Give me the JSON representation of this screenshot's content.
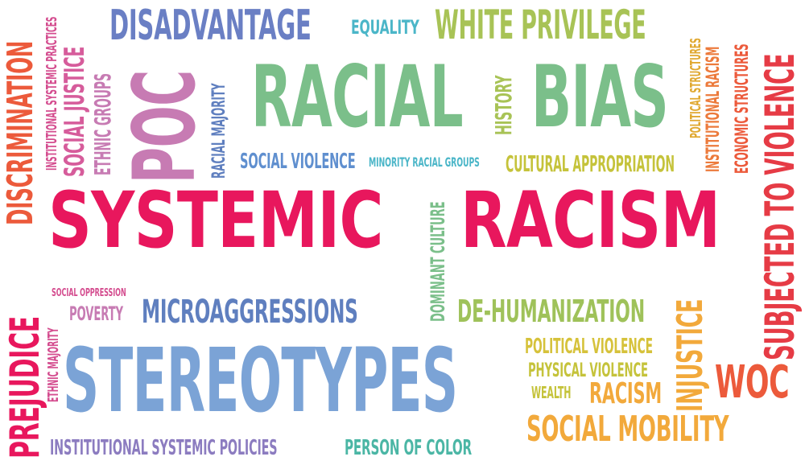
{
  "words": [
    {
      "text": "SYSTEMIC",
      "color": "#e8175d"
    },
    {
      "text": "RACISM",
      "color": "#e8175d"
    },
    {
      "text": "RACIAL",
      "color": "#7bbf8a"
    },
    {
      "text": "BIAS",
      "color": "#7bbf8a"
    },
    {
      "text": "STEREOTYPES",
      "color": "#7ba3d6"
    },
    {
      "text": "POC",
      "color": "#c77bb3"
    },
    {
      "text": "DISADVANTAGE",
      "color": "#6a7fc4"
    },
    {
      "text": "WHITE PRIVILEGE",
      "color": "#a8c356"
    },
    {
      "text": "EQUALITY",
      "color": "#4bb6c8"
    },
    {
      "text": "MICROAGGRESSIONS",
      "color": "#5f7fbf"
    },
    {
      "text": "DE-HUMANIZATION",
      "color": "#9fc25a"
    },
    {
      "text": "SOCIAL MOBILITY",
      "color": "#f2a93b"
    },
    {
      "text": "INSTITUTIONAL SYSTEMIC POLICIES",
      "color": "#8c7cc0"
    },
    {
      "text": "PERSON OF COLOR",
      "color": "#4bb6a5"
    },
    {
      "text": "WOC",
      "color": "#ec5a3b"
    },
    {
      "text": "INJUSTICE",
      "color": "#f2a93b"
    },
    {
      "text": "SUBJECTED TO VIOLENCE",
      "color": "#e63b45"
    },
    {
      "text": "PREJUDICE",
      "color": "#e8175d"
    },
    {
      "text": "DISCRIMINATION",
      "color": "#ec5a3b"
    },
    {
      "text": "SOCIAL JUSTICE",
      "color": "#d65c9b"
    },
    {
      "text": "INSTITUTIONAL SYSTEMIC PRACTICES",
      "color": "#d44d8f"
    },
    {
      "text": "ETHNIC GROUPS",
      "color": "#c77bb3"
    },
    {
      "text": "RACIAL MAJORITY",
      "color": "#5f7fbf"
    },
    {
      "text": "HISTORY",
      "color": "#a8c356"
    },
    {
      "text": "SOCIAL VIOLENCE",
      "color": "#5f8fcf"
    },
    {
      "text": "MINORITY RACIAL GROUPS",
      "color": "#4bb6c8"
    },
    {
      "text": "CULTURAL APPROPRIATION",
      "color": "#c5c33b"
    },
    {
      "text": "POLITICAL STRUCTURES",
      "color": "#e0a830"
    },
    {
      "text": "INSTITUTIONAL RACISM",
      "color": "#ec7a3b"
    },
    {
      "text": "ECONOMIC STRUCTURES",
      "color": "#ec5a3b"
    },
    {
      "text": "DOMINANT CULTURE",
      "color": "#7bbf8a"
    },
    {
      "text": "POLITICAL VIOLENCE",
      "color": "#d6c23b"
    },
    {
      "text": "PHYSICAL VIOLENCE",
      "color": "#c5c33b"
    },
    {
      "text": "WEALTH",
      "color": "#c5c33b"
    },
    {
      "text": "RACISM",
      "color": "#f2a93b"
    },
    {
      "text": "POVERTY",
      "color": "#c77bb3"
    },
    {
      "text": "SOCIAL OPPRESSION",
      "color": "#d44d8f"
    },
    {
      "text": "ETHNIC MAJORITY",
      "color": "#d44d8f"
    }
  ]
}
